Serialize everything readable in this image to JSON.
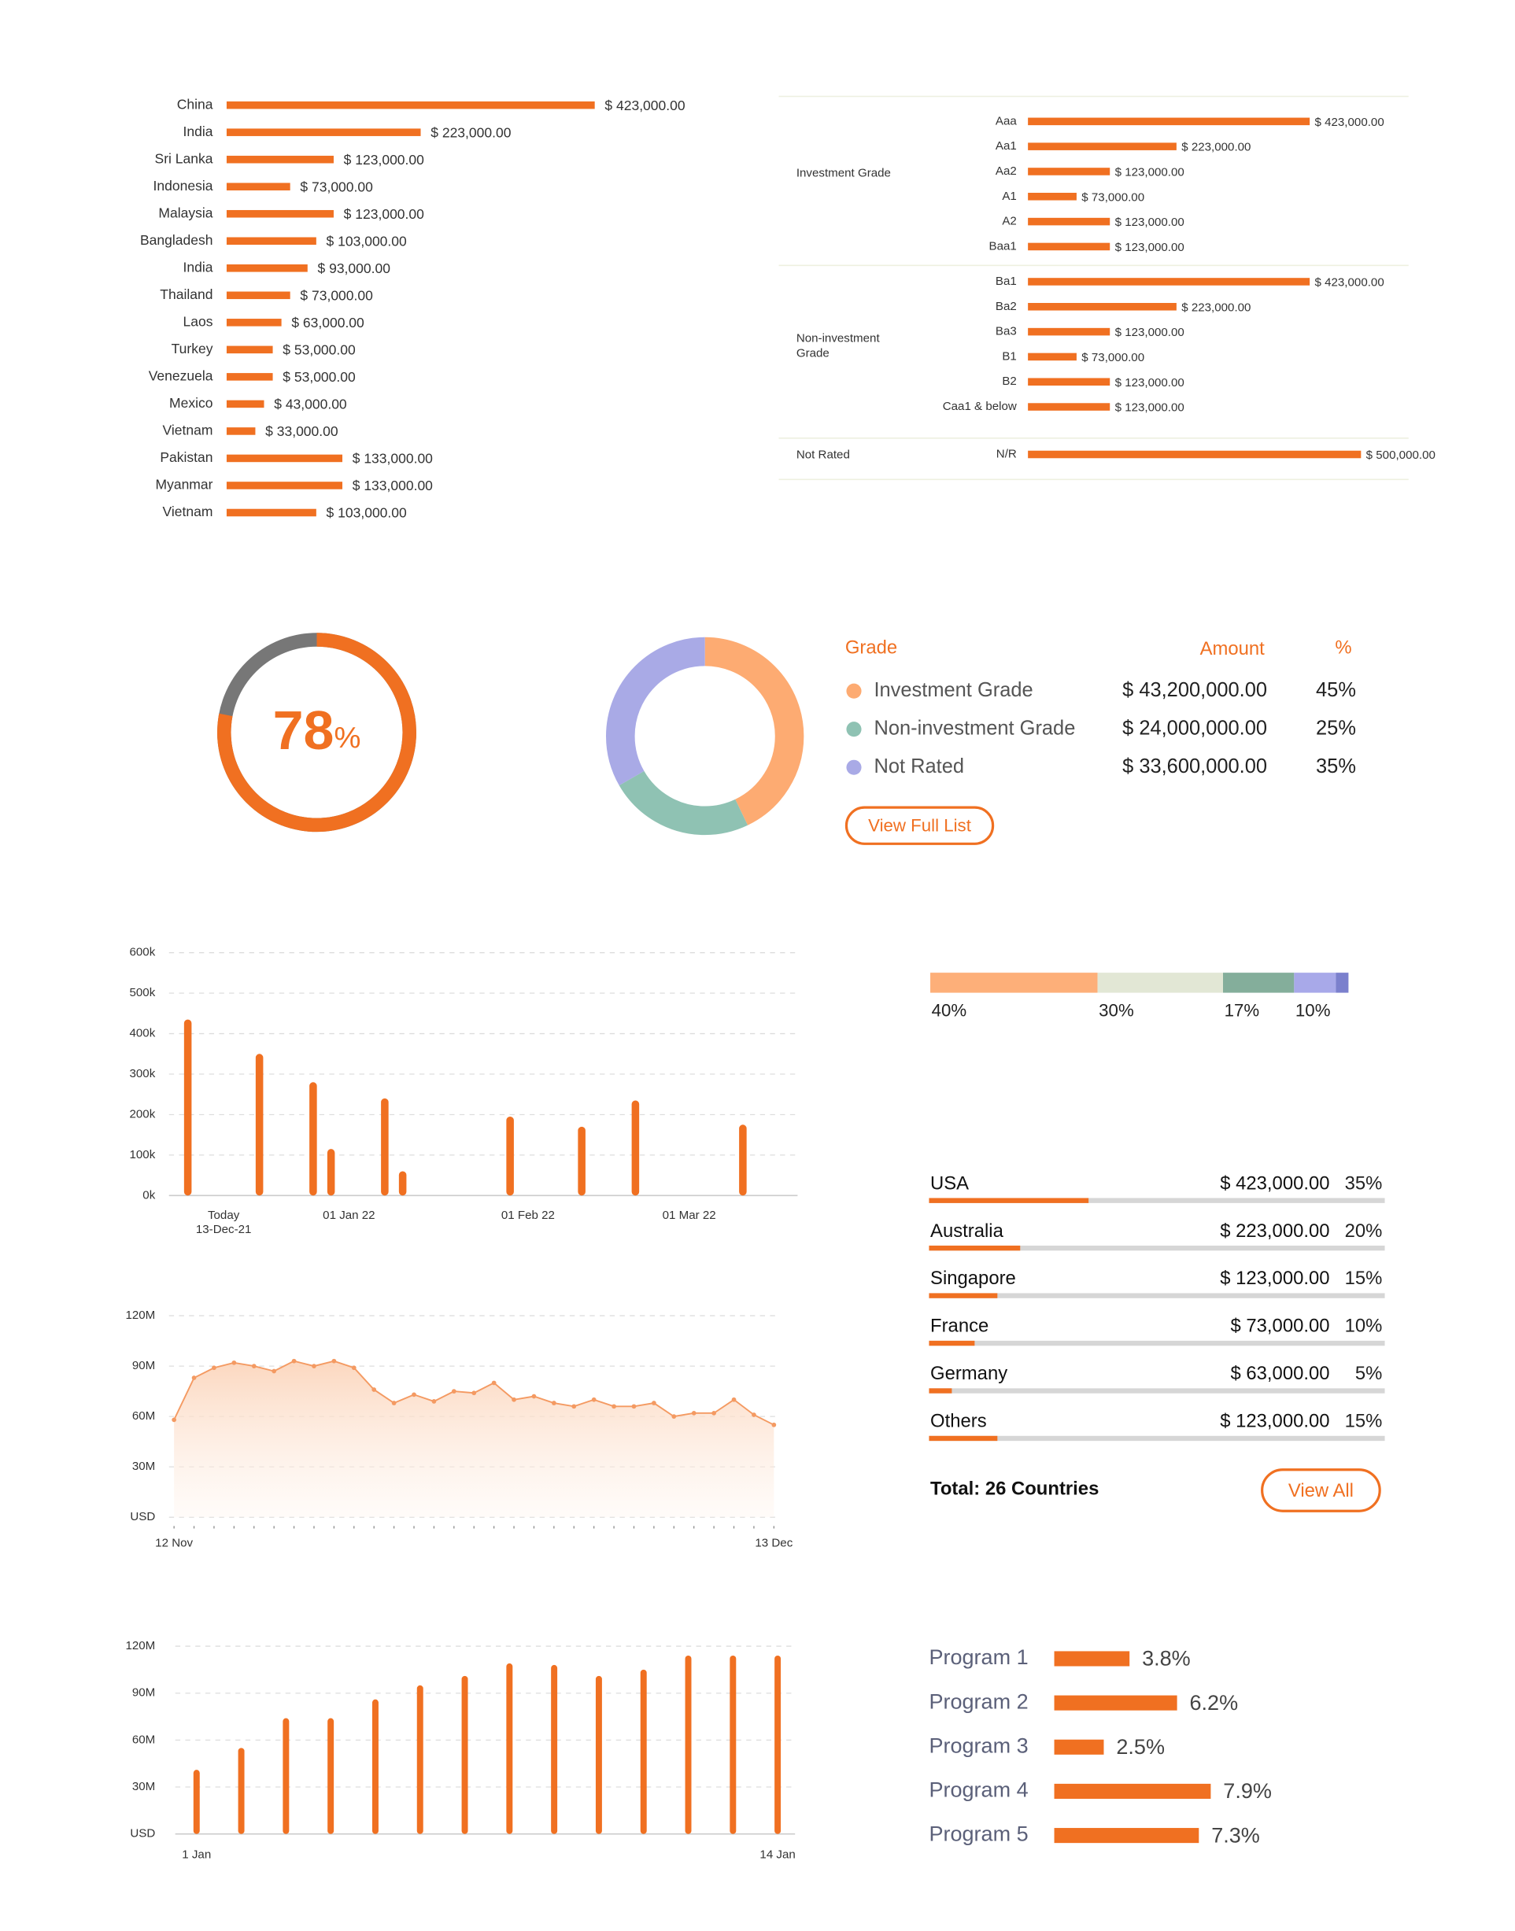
{
  "chart_data": [
    {
      "type": "bar",
      "orientation": "horizontal",
      "color": "#f07021",
      "categories": [
        "China",
        "India",
        "Sri Lanka",
        "Indonesia",
        "Malaysia",
        "Bangladesh",
        "India",
        "Thailand",
        "Laos",
        "Turkey",
        "Venezuela",
        "Mexico",
        "Vietnam",
        "Pakistan",
        "Myanmar",
        "Vietnam"
      ],
      "values": [
        423000,
        223000,
        123000,
        73000,
        123000,
        103000,
        93000,
        73000,
        63000,
        53000,
        53000,
        43000,
        33000,
        133000,
        133000,
        103000
      ],
      "value_labels": [
        "$ 423,000.00",
        "$ 223,000.00",
        "$ 123,000.00",
        "$ 73,000.00",
        "$ 123,000.00",
        "$ 103,000.00",
        "$ 93,000.00",
        "$ 73,000.00",
        "$ 63,000.00",
        "$ 53,000.00",
        "$ 53,000.00",
        "$ 43,000.00",
        "$ 33,000.00",
        "$ 133,000.00",
        "$ 133,000.00",
        "$ 103,000.00"
      ]
    },
    {
      "type": "grouped-bar",
      "orientation": "horizontal",
      "color": "#f07021",
      "groups": [
        {
          "name": "Investment Grade",
          "categories": [
            "Aaa",
            "Aa1",
            "Aa2",
            "A1",
            "A2",
            "Baa1"
          ],
          "values": [
            423000,
            223000,
            123000,
            73000,
            123000,
            123000
          ],
          "value_labels": [
            "$ 423,000.00",
            "$ 223,000.00",
            "$ 123,000.00",
            "$ 73,000.00",
            "$ 123,000.00",
            "$ 123,000.00"
          ]
        },
        {
          "name": "Non-investment Grade",
          "categories": [
            "Ba1",
            "Ba2",
            "Ba3",
            "B1",
            "B2",
            "Caa1 & below"
          ],
          "values": [
            423000,
            223000,
            123000,
            73000,
            123000,
            123000
          ],
          "value_labels": [
            "$ 423,000.00",
            "$ 223,000.00",
            "$ 123,000.00",
            "$ 73,000.00",
            "$ 123,000.00",
            "$ 123,000.00"
          ]
        },
        {
          "name": "Not Rated",
          "categories": [
            "N/R"
          ],
          "values": [
            500000
          ],
          "value_labels": [
            "$ 500,000.00"
          ]
        }
      ]
    },
    {
      "type": "gauge",
      "value": 78,
      "unit": "%",
      "color": "#f07021",
      "track_color": "#777777"
    },
    {
      "type": "donut",
      "headers": [
        "Grade",
        "Amount",
        "%"
      ],
      "series": [
        {
          "name": "Investment Grade",
          "color": "#fdab72",
          "value": 45,
          "value_label": "45%",
          "amount": "$ 43,200,000.00"
        },
        {
          "name": "Non-investment Grade",
          "color": "#8fc2b3",
          "value": 25,
          "value_label": "25%",
          "amount": "$ 24,000,000.00"
        },
        {
          "name": "Not Rated",
          "color": "#a9aae6",
          "value": 35,
          "value_label": "35%",
          "amount": "$ 33,600,000.00"
        }
      ],
      "button": "View Full List"
    },
    {
      "type": "column",
      "color": "#f07021",
      "grid": true,
      "categories": [
        null,
        null,
        "Today\n13-Dec-21",
        null,
        null,
        null,
        null,
        null,
        null,
        "01 Jan 22",
        null,
        null,
        null,
        null,
        null,
        null,
        null,
        null,
        null,
        "01 Feb 22",
        null,
        null,
        null,
        null,
        null,
        null,
        null,
        null,
        "01 Mar 22",
        null,
        null,
        null,
        null,
        null
      ],
      "values": [
        435000,
        null,
        null,
        null,
        350000,
        null,
        null,
        280000,
        115000,
        null,
        null,
        240000,
        60000,
        null,
        null,
        null,
        null,
        null,
        195000,
        null,
        null,
        null,
        170000,
        null,
        null,
        235000,
        null,
        null,
        null,
        null,
        null,
        175000,
        null,
        null
      ],
      "ylim": [
        0,
        600000
      ],
      "yticks": [
        {
          "value": 0,
          "label": "0k"
        },
        {
          "value": 100000,
          "label": "100k"
        },
        {
          "value": 200000,
          "label": "200k"
        },
        {
          "value": 300000,
          "label": "300k"
        },
        {
          "value": 400000,
          "label": "400k"
        },
        {
          "value": 500000,
          "label": "500k"
        },
        {
          "value": 600000,
          "label": "600k"
        }
      ]
    },
    {
      "type": "area",
      "color": "#f49a62",
      "grid": true,
      "categories": [
        "12 Nov",
        null,
        null,
        null,
        null,
        null,
        null,
        null,
        null,
        null,
        null,
        null,
        null,
        null,
        null,
        null,
        null,
        null,
        null,
        null,
        null,
        null,
        null,
        null,
        null,
        null,
        null,
        null,
        null,
        null,
        "13 Dec"
      ],
      "values": [
        58000000,
        83000000,
        89000000,
        92000000,
        90000000,
        87000000,
        93000000,
        90000000,
        93000000,
        89000000,
        76000000,
        68000000,
        73000000,
        69000000,
        75000000,
        74000000,
        80000000,
        70000000,
        72000000,
        68000000,
        66000000,
        70000000,
        66000000,
        66000000,
        68000000,
        60000000,
        62000000,
        62000000,
        70000000,
        61000000,
        55000000
      ],
      "ylim": [
        0,
        120000000
      ],
      "yticks": [
        {
          "value": 0,
          "label": "USD"
        },
        {
          "value": 30000000,
          "label": "30M"
        },
        {
          "value": 60000000,
          "label": "60M"
        },
        {
          "value": 90000000,
          "label": "90M"
        },
        {
          "value": 120000000,
          "label": "120M"
        }
      ]
    },
    {
      "type": "column",
      "color": "#f07021",
      "grid": true,
      "categories": [
        "1 Jan",
        null,
        null,
        null,
        null,
        null,
        null,
        null,
        null,
        null,
        null,
        null,
        null,
        "14 Jan"
      ],
      "values": [
        41000000,
        55000000,
        74000000,
        74000000,
        86000000,
        95000000,
        101000000,
        109000000,
        108000000,
        101000000,
        105000000,
        114000000,
        114000000,
        114000000
      ],
      "ylim": [
        0,
        120000000
      ],
      "yticks": [
        {
          "value": 0,
          "label": "USD"
        },
        {
          "value": 30000000,
          "label": "30M"
        },
        {
          "value": 60000000,
          "label": "60M"
        },
        {
          "value": 90000000,
          "label": "90M"
        },
        {
          "value": 120000000,
          "label": "120M"
        }
      ]
    },
    {
      "type": "stacked-bar",
      "segments": [
        {
          "color": "#fdaf79",
          "value": 40,
          "value_label": "40%"
        },
        {
          "color": "#e2e7d5",
          "value": 30,
          "value_label": "30%"
        },
        {
          "color": "#84ae9b",
          "value": 17,
          "value_label": "17%"
        },
        {
          "color": "#a8a9e9",
          "value": 10,
          "value_label": "10%"
        },
        {
          "color": "#7b80cd",
          "value": 3
        }
      ]
    },
    {
      "type": "progress-list",
      "color": "#f07021",
      "track_color": "#d6d6d6",
      "rows": [
        {
          "name": "USA",
          "amount": "$ 423,000.00",
          "value": 35,
          "value_label": "35%"
        },
        {
          "name": "Australia",
          "amount": "$ 223,000.00",
          "value": 20,
          "value_label": "20%"
        },
        {
          "name": "Singapore",
          "amount": "$ 123,000.00",
          "value": 15,
          "value_label": "15%"
        },
        {
          "name": "France",
          "amount": "$ 73,000.00",
          "value": 10,
          "value_label": "10%"
        },
        {
          "name": "Germany",
          "amount": "$ 63,000.00",
          "value": 5,
          "value_label": "5%"
        },
        {
          "name": "Others",
          "amount": "$ 123,000.00",
          "value": 15,
          "value_label": "15%"
        }
      ],
      "total_label": "Total: 26 Countries",
      "button": "View All"
    },
    {
      "type": "bar",
      "orientation": "horizontal",
      "color": "#f07021",
      "categories": [
        "Program 1",
        "Program 2",
        "Program 3",
        "Program 4",
        "Program 5"
      ],
      "values": [
        3.8,
        6.2,
        2.5,
        7.9,
        7.3
      ],
      "value_labels": [
        "3.8%",
        "6.2%",
        "2.5%",
        "7.9%",
        "7.3%"
      ]
    }
  ]
}
